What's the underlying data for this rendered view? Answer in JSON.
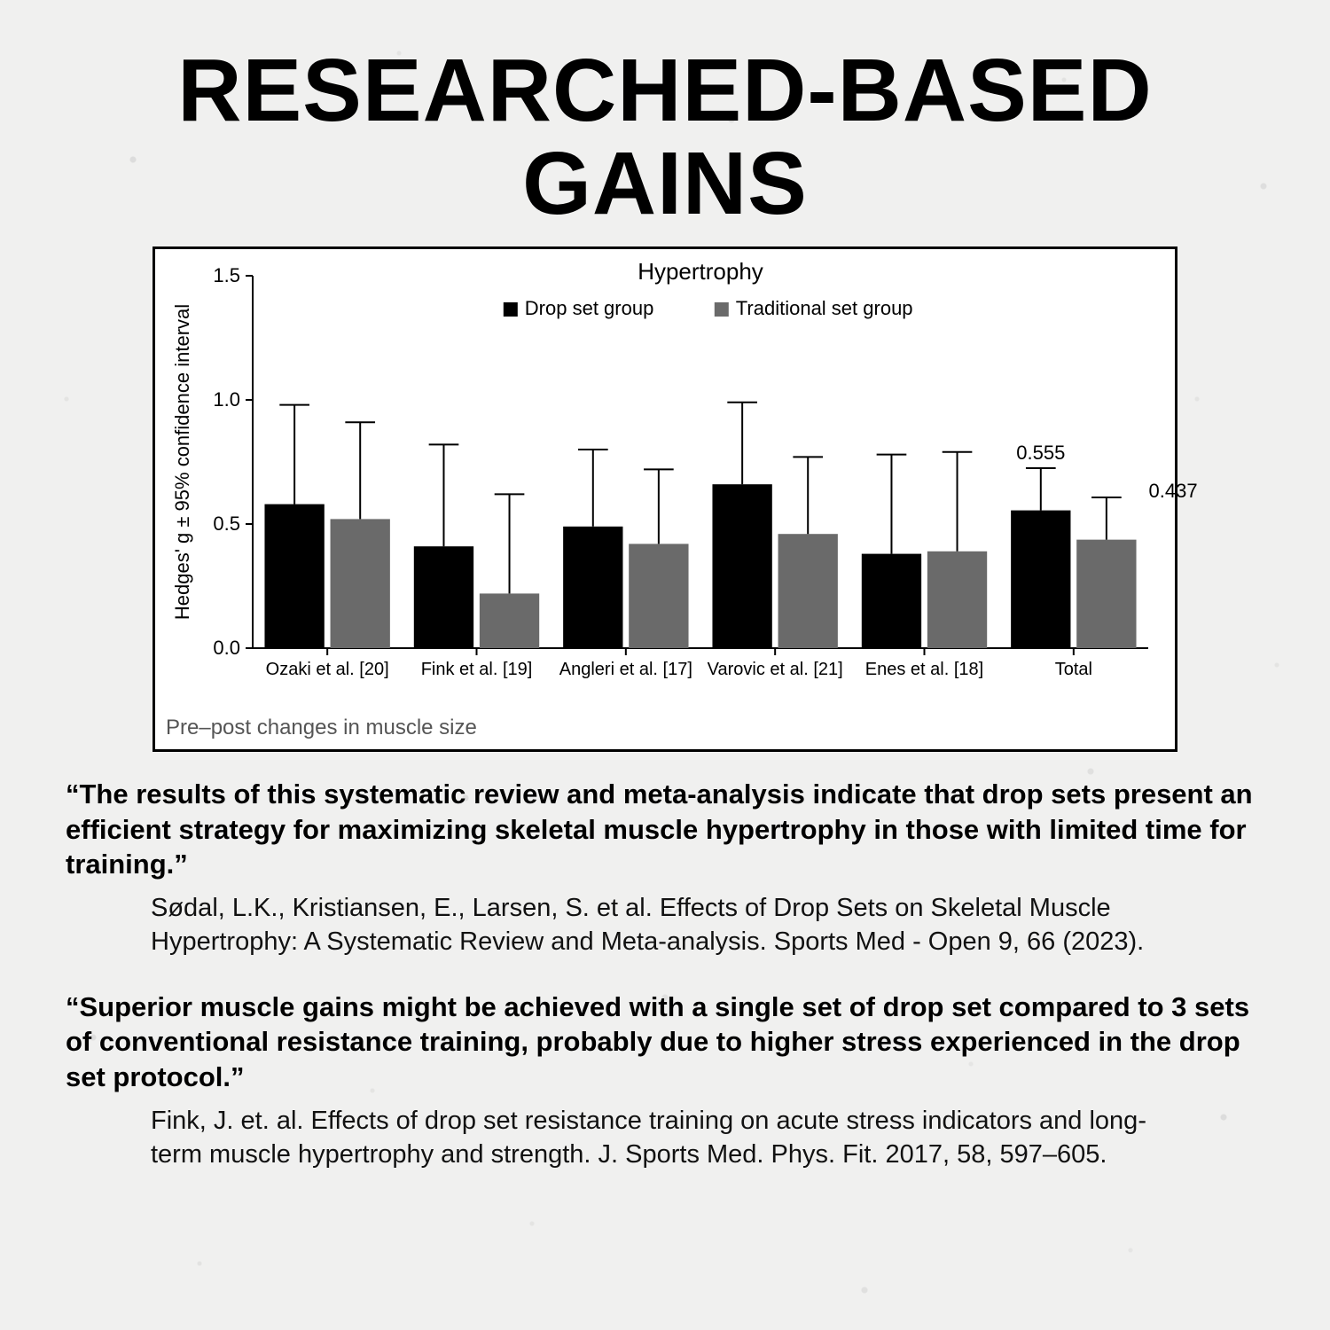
{
  "title": "RESEARCHED-BASED GAINS",
  "chart": {
    "type": "bar-grouped-with-error",
    "title": "Hypertrophy",
    "title_fontsize": 26,
    "ylabel": "Hedges' g ± 95% confidence interval",
    "ylabel_fontsize": 22,
    "ylim": [
      0.0,
      1.5
    ],
    "yticks": [
      0.0,
      0.5,
      1.0,
      1.5
    ],
    "tick_fontsize": 22,
    "xcat_fontsize": 20,
    "legend": {
      "items": [
        "Drop set group",
        "Traditional set group"
      ],
      "colors": [
        "#000000",
        "#6a6a6a"
      ],
      "swatch_size": 16,
      "fontsize": 22
    },
    "series_colors": {
      "drop": "#000000",
      "trad": "#6a6a6a"
    },
    "error_bar_color": "#000000",
    "axis_color": "#000000",
    "background_color": "#ffffff",
    "bar_width_rel": 0.4,
    "bar_gap_rel": 0.04,
    "categories": [
      "Ozaki et al. [20]",
      "Fink et al. [19]",
      "Angleri et al. [17]",
      "Varovic et al. [21]",
      "Enes et al. [18]",
      "Total"
    ],
    "drop": {
      "mean": [
        0.58,
        0.41,
        0.49,
        0.66,
        0.38,
        0.555
      ],
      "err": [
        0.4,
        0.41,
        0.31,
        0.33,
        0.4,
        0.17
      ]
    },
    "trad": {
      "mean": [
        0.52,
        0.22,
        0.42,
        0.46,
        0.39,
        0.437
      ],
      "err": [
        0.39,
        0.4,
        0.3,
        0.31,
        0.4,
        0.17
      ]
    },
    "value_labels": {
      "index": 5,
      "drop": "0.555",
      "trad": "0.437",
      "fontsize": 22
    },
    "caption": "Pre–post changes in muscle size",
    "caption_fontsize": 24
  },
  "quotes": [
    {
      "text": "“The results of this systematic review and meta-analysis indicate that drop sets present an efficient strategy for maximizing skeletal muscle hypertrophy in those with limited time for training.”",
      "cite": "Sødal, L.K., Kristiansen, E., Larsen, S. et al. Effects of Drop Sets on Skeletal Muscle Hypertrophy: A Systematic Review and Meta-analysis. Sports Med - Open 9, 66 (2023)."
    },
    {
      "text": "“Superior muscle gains might be achieved with a single set of drop set compared to 3 sets of conventional resistance training, probably due to higher stress experienced in the drop set protocol.”",
      "cite": "Fink, J. et. al. Effects of drop set resistance training on acute stress indicators and long-term muscle hypertrophy and strength. J. Sports Med. Phys. Fit. 2017, 58, 597–605."
    }
  ]
}
